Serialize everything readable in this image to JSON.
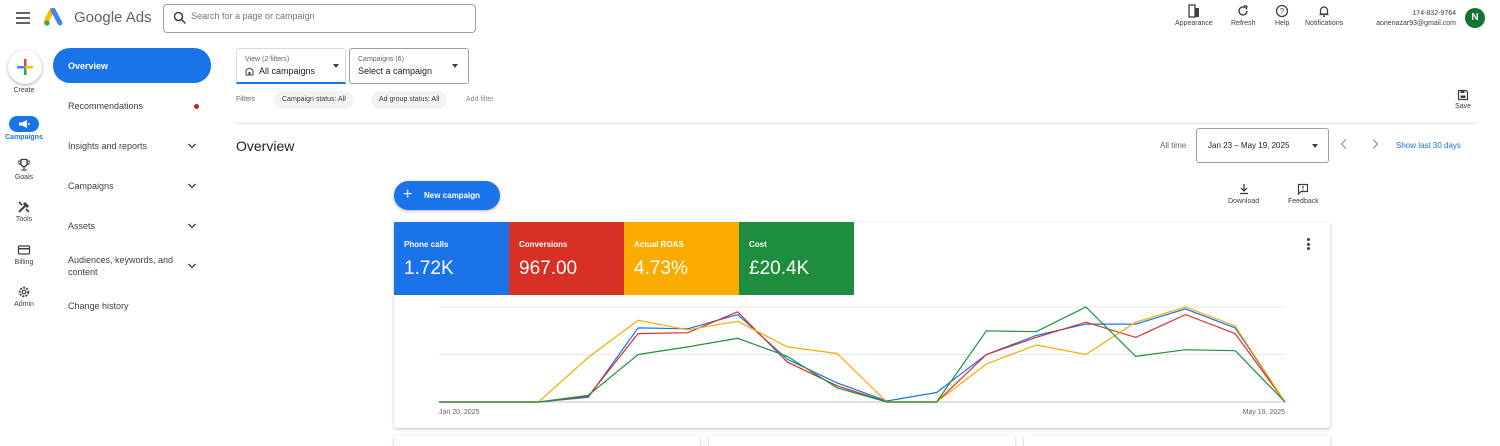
{
  "header": {
    "product_name": "Google Ads",
    "search_placeholder": "Search for a page or campaign",
    "actions": [
      {
        "label": "Appearance",
        "icon": "appearance-icon"
      },
      {
        "label": "Refresh",
        "icon": "refresh-icon"
      },
      {
        "label": "Help",
        "icon": "help-icon"
      },
      {
        "label": "Notifications",
        "icon": "bell-icon"
      }
    ],
    "account_id": "174-832-9764",
    "account_email": "aonenazar93@gmail.com",
    "avatar_letter": "N"
  },
  "rail": {
    "create_label": "Create",
    "items": [
      {
        "label": "Campaigns",
        "icon": "megaphone-icon",
        "active": true
      },
      {
        "label": "Goals",
        "icon": "trophy-icon"
      },
      {
        "label": "Tools",
        "icon": "tools-icon"
      },
      {
        "label": "Billing",
        "icon": "credit-card-icon"
      },
      {
        "label": "Admin",
        "icon": "gear-icon"
      }
    ]
  },
  "sidenav": {
    "items": [
      {
        "label": "Overview"
      },
      {
        "label": "Recommendations"
      },
      {
        "label": "Insights and reports"
      },
      {
        "label": "Campaigns"
      },
      {
        "label": "Assets"
      },
      {
        "label": "Audiences, keywords, and content"
      },
      {
        "label": "Change history"
      }
    ]
  },
  "selectors": {
    "view_small": "View (2 filters)",
    "view_value": "All campaigns",
    "campaigns_small": "Campaigns (6)",
    "campaigns_value": "Select a campaign"
  },
  "filters": {
    "label": "Filters",
    "chips": [
      "Campaign status: All",
      "Ad group status: All"
    ],
    "add_filter": "Add filter",
    "save_label": "Save"
  },
  "overview": {
    "title": "Overview",
    "all_time_label": "All time",
    "date_range": "Jan 23 – May 19, 2025",
    "show_last_30": "Show last 30 days",
    "new_campaign": "New campaign",
    "download": "Download",
    "feedback": "Feedback"
  },
  "metrics": [
    {
      "name": "Phone calls",
      "value": "1.72K",
      "color": "#1a73e8"
    },
    {
      "name": "Conversions",
      "value": "967.00",
      "color": "#d93025"
    },
    {
      "name": "Actual ROAS",
      "value": "4.73%",
      "color": "#f9ab00"
    },
    {
      "name": "Cost",
      "value": "£20.4K",
      "color": "#1e8e3e"
    }
  ],
  "chart_data": {
    "type": "line",
    "x_start_label": "Jan 20, 2025",
    "x_end_label": "May 19, 2025",
    "points": 18,
    "grid": true,
    "series": [
      {
        "color": "#1a73e8",
        "values": [
          0,
          0,
          0,
          0.05,
          0.78,
          0.77,
          0.92,
          0.45,
          0.2,
          0.01,
          0.1,
          0.5,
          0.7,
          0.82,
          0.82,
          0.98,
          0.78,
          0
        ]
      },
      {
        "color": "#d93025",
        "values": [
          0,
          0,
          0,
          0.06,
          0.72,
          0.73,
          0.95,
          0.42,
          0.17,
          0,
          0,
          0.5,
          0.68,
          0.84,
          0.68,
          0.92,
          0.72,
          0
        ]
      },
      {
        "color": "#f9ab00",
        "values": [
          0,
          0,
          0,
          0.47,
          0.86,
          0.76,
          0.85,
          0.58,
          0.51,
          0,
          0,
          0.4,
          0.6,
          0.5,
          0.84,
          1.0,
          0.8,
          0
        ]
      },
      {
        "color": "#1e8e3e",
        "values": [
          0,
          0,
          0,
          0.07,
          0.5,
          0.58,
          0.67,
          0.48,
          0.15,
          0,
          0,
          0.75,
          0.74,
          1.0,
          0.48,
          0.55,
          0.54,
          0
        ]
      }
    ]
  }
}
